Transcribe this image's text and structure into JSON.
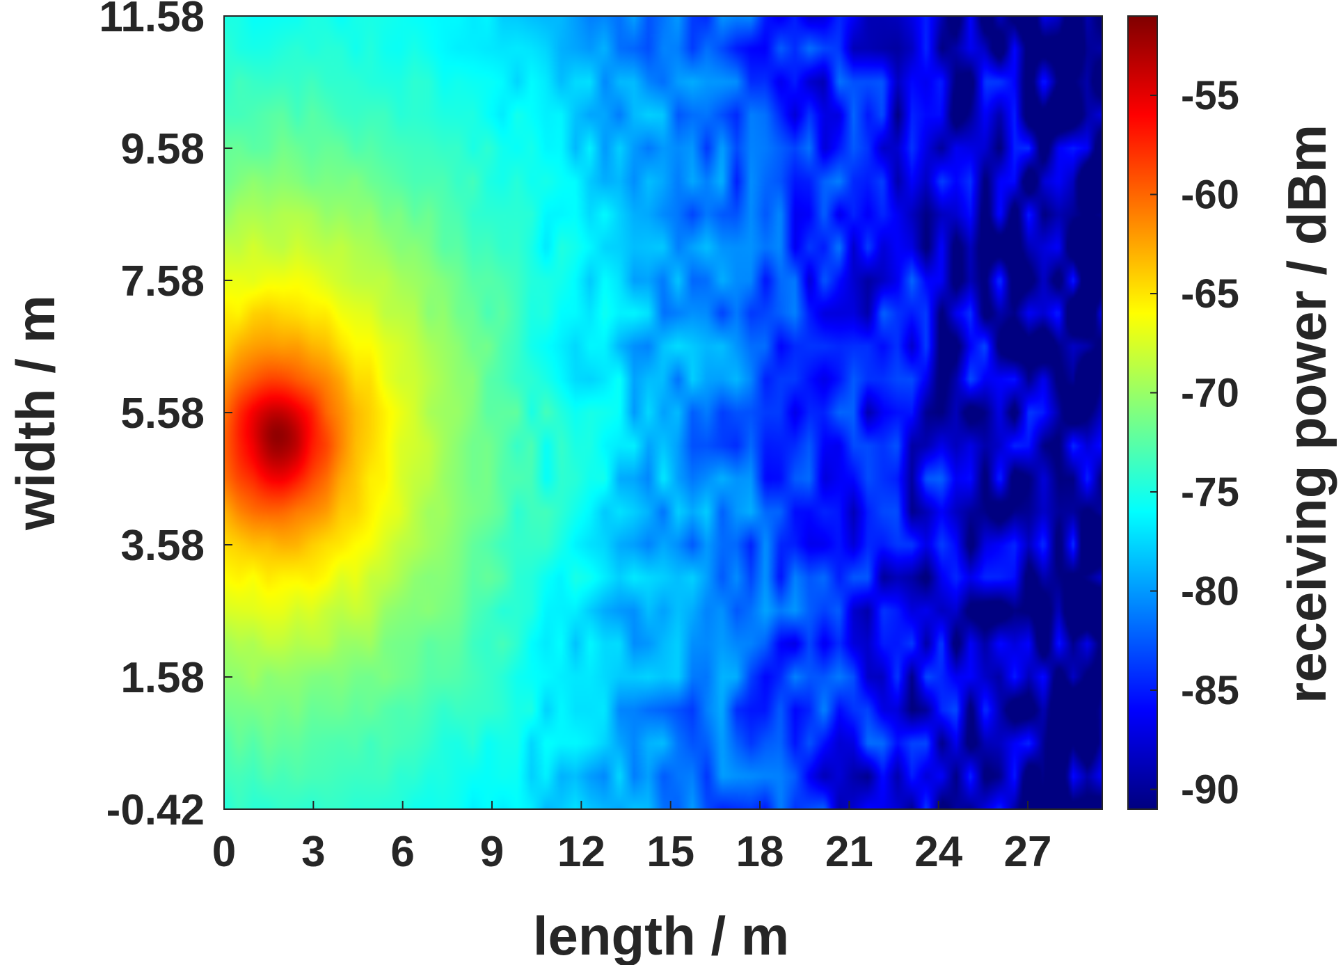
{
  "chart_data": {
    "type": "heatmap",
    "title": "",
    "xlabel": "length / m",
    "ylabel": "width / m",
    "colorbar_label": "receiving power / dBm",
    "xlim": [
      0,
      29.5
    ],
    "ylim": [
      -0.42,
      11.58
    ],
    "x_ticks": [
      "0",
      "3",
      "6",
      "9",
      "12",
      "15",
      "18",
      "21",
      "24",
      "27"
    ],
    "y_ticks": [
      "-0.42",
      "1.58",
      "3.58",
      "5.58",
      "7.58",
      "9.58",
      "11.58"
    ],
    "colorbar_ticks": [
      "-55",
      "-60",
      "-65",
      "-70",
      "-75",
      "-80",
      "-85",
      "-90"
    ],
    "colorbar_range": [
      -91,
      -51
    ],
    "colormap": "jet",
    "peak": {
      "x": 1.8,
      "y": 5.2,
      "value": -51
    },
    "grid": false,
    "legend": "colorbar-right"
  }
}
